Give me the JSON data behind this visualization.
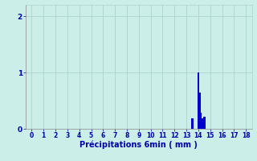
{
  "xlabel": "Précipitations 6min ( mm )",
  "bar_data": [
    {
      "x": 13.5,
      "height": 0.18
    },
    {
      "x": 14.0,
      "height": 1.0
    },
    {
      "x": 14.1,
      "height": 0.65
    },
    {
      "x": 14.2,
      "height": 0.28
    },
    {
      "x": 14.3,
      "height": 0.18
    },
    {
      "x": 14.5,
      "height": 0.22
    }
  ],
  "bar_color": "#0000cc",
  "bg_color": "#cceee8",
  "grid_color": "#aad4cc",
  "axis_color": "#888888",
  "tick_color": "#0000aa",
  "xlim": [
    -0.5,
    18.5
  ],
  "ylim": [
    0,
    2.2
  ],
  "xticks": [
    0,
    1,
    2,
    3,
    4,
    5,
    6,
    7,
    8,
    9,
    10,
    11,
    12,
    13,
    14,
    15,
    16,
    17,
    18
  ],
  "yticks": [
    0,
    1,
    2
  ],
  "bar_width": 0.18
}
